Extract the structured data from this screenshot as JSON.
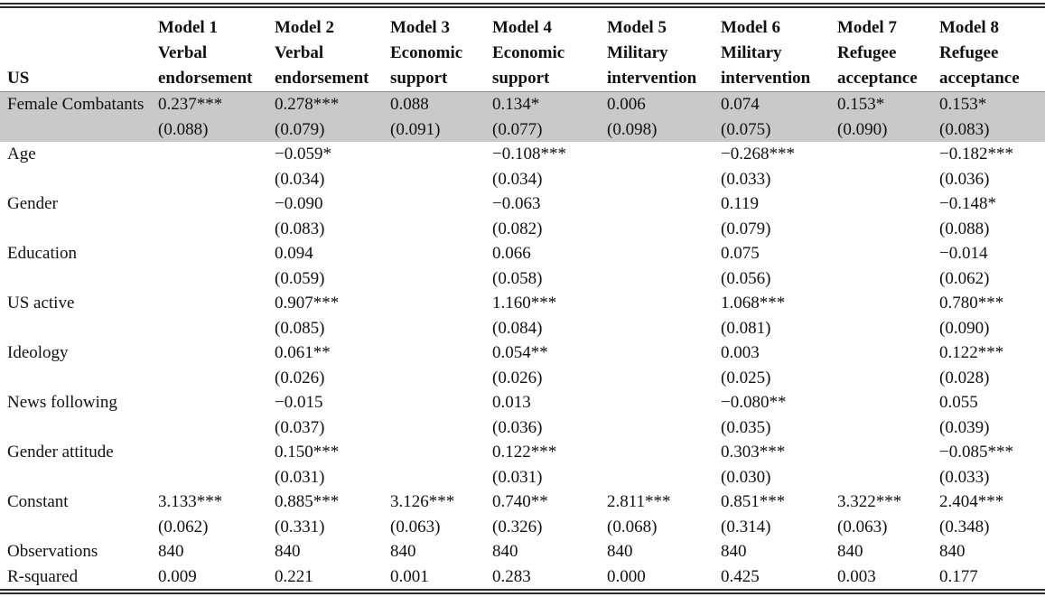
{
  "table": {
    "corner_label": "US",
    "columns": [
      {
        "model": "Model 1",
        "outcome": "Verbal endorsement"
      },
      {
        "model": "Model 2",
        "outcome": "Verbal endorsement"
      },
      {
        "model": "Model 3",
        "outcome": "Economic support"
      },
      {
        "model": "Model 4",
        "outcome": "Economic support"
      },
      {
        "model": "Model 5",
        "outcome": "Military intervention"
      },
      {
        "model": "Model 6",
        "outcome": "Military intervention"
      },
      {
        "model": "Model 7",
        "outcome": "Refugee acceptance"
      },
      {
        "model": "Model 8",
        "outcome": "Refugee acceptance"
      }
    ],
    "rows": [
      {
        "label": "Female Combatants",
        "highlight": true,
        "coefs": [
          "0.237***",
          "0.278***",
          "0.088",
          "0.134*",
          "0.006",
          "0.074",
          "0.153*",
          "0.153*"
        ],
        "ses": [
          "(0.088)",
          "(0.079)",
          "(0.091)",
          "(0.077)",
          "(0.098)",
          "(0.075)",
          "(0.090)",
          "(0.083)"
        ]
      },
      {
        "label": "Age",
        "coefs": [
          "",
          "−0.059*",
          "",
          "−0.108***",
          "",
          "−0.268***",
          "",
          "−0.182***"
        ],
        "ses": [
          "",
          "(0.034)",
          "",
          "(0.034)",
          "",
          "(0.033)",
          "",
          "(0.036)"
        ]
      },
      {
        "label": "Gender",
        "coefs": [
          "",
          "−0.090",
          "",
          "−0.063",
          "",
          "0.119",
          "",
          "−0.148*"
        ],
        "ses": [
          "",
          "(0.083)",
          "",
          "(0.082)",
          "",
          "(0.079)",
          "",
          "(0.088)"
        ]
      },
      {
        "label": "Education",
        "coefs": [
          "",
          "0.094",
          "",
          "0.066",
          "",
          "0.075",
          "",
          "−0.014"
        ],
        "ses": [
          "",
          "(0.059)",
          "",
          "(0.058)",
          "",
          "(0.056)",
          "",
          "(0.062)"
        ]
      },
      {
        "label": "US active",
        "coefs": [
          "",
          "0.907***",
          "",
          "1.160***",
          "",
          "1.068***",
          "",
          "0.780***"
        ],
        "ses": [
          "",
          "(0.085)",
          "",
          "(0.084)",
          "",
          "(0.081)",
          "",
          "(0.090)"
        ]
      },
      {
        "label": "Ideology",
        "coefs": [
          "",
          "0.061**",
          "",
          "0.054**",
          "",
          "0.003",
          "",
          "0.122***"
        ],
        "ses": [
          "",
          "(0.026)",
          "",
          "(0.026)",
          "",
          "(0.025)",
          "",
          "(0.028)"
        ]
      },
      {
        "label": "News following",
        "coefs": [
          "",
          "−0.015",
          "",
          "0.013",
          "",
          "−0.080**",
          "",
          "0.055"
        ],
        "ses": [
          "",
          "(0.037)",
          "",
          "(0.036)",
          "",
          "(0.035)",
          "",
          "(0.039)"
        ]
      },
      {
        "label": "Gender attitude",
        "coefs": [
          "",
          "0.150***",
          "",
          "0.122***",
          "",
          "0.303***",
          "",
          "−0.085***"
        ],
        "ses": [
          "",
          "(0.031)",
          "",
          "(0.031)",
          "",
          "(0.030)",
          "",
          "(0.033)"
        ]
      },
      {
        "label": "Constant",
        "coefs": [
          "3.133***",
          "0.885***",
          "3.126***",
          "0.740**",
          "2.811***",
          "0.851***",
          "3.322***",
          "2.404***"
        ],
        "ses": [
          "(0.062)",
          "(0.331)",
          "(0.063)",
          "(0.326)",
          "(0.068)",
          "(0.314)",
          "(0.063)",
          "(0.348)"
        ]
      },
      {
        "label": "Observations",
        "coefs": [
          "840",
          "840",
          "840",
          "840",
          "840",
          "840",
          "840",
          "840"
        ]
      },
      {
        "label": "R-squared",
        "coefs": [
          "0.009",
          "0.221",
          "0.001",
          "0.283",
          "0.000",
          "0.425",
          "0.003",
          "0.177"
        ]
      }
    ],
    "highlight_color": "#c9c9c9"
  }
}
